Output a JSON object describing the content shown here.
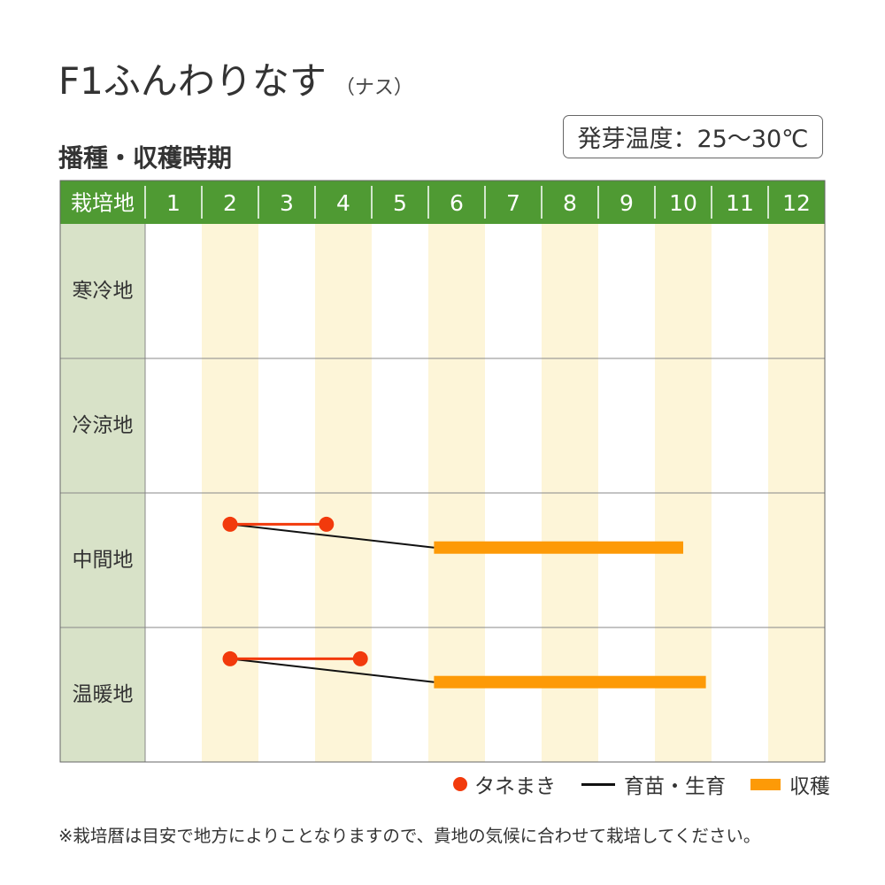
{
  "header": {
    "title": "F1ふんわりなす",
    "title_sub": "（ナス）",
    "subtitle": "播種・収穫時期",
    "temperature_badge": "発芽温度：25～30℃"
  },
  "colors": {
    "header_green": "#4f9a33",
    "region_bg": "#d8e2c8",
    "stripe": "#fdf5d8",
    "sowing": "#f23a0c",
    "growing": "#111111",
    "harvest": "#fd9a07"
  },
  "chart_data": {
    "type": "table",
    "corner_label": "栽培地",
    "months": [
      "1",
      "2",
      "3",
      "4",
      "5",
      "6",
      "7",
      "8",
      "9",
      "10",
      "11",
      "12"
    ],
    "rows": [
      {
        "region": "寒冷地",
        "sowing": null,
        "harvest": null
      },
      {
        "region": "冷涼地",
        "sowing": null,
        "harvest": null
      },
      {
        "region": "中間地",
        "sowing": [
          2.5,
          4.2
        ],
        "harvest": [
          6.1,
          10.5
        ]
      },
      {
        "region": "温暖地",
        "sowing": [
          2.5,
          4.8
        ],
        "harvest": [
          6.1,
          10.9
        ]
      }
    ],
    "legend": [
      {
        "key": "sowing",
        "label": "タネまき"
      },
      {
        "key": "growing",
        "label": "育苗・生育"
      },
      {
        "key": "harvest",
        "label": "収穫"
      }
    ]
  },
  "footnote": "※栽培暦は目安で地方によりことなりますので、貴地の気候に合わせて栽培してください。"
}
